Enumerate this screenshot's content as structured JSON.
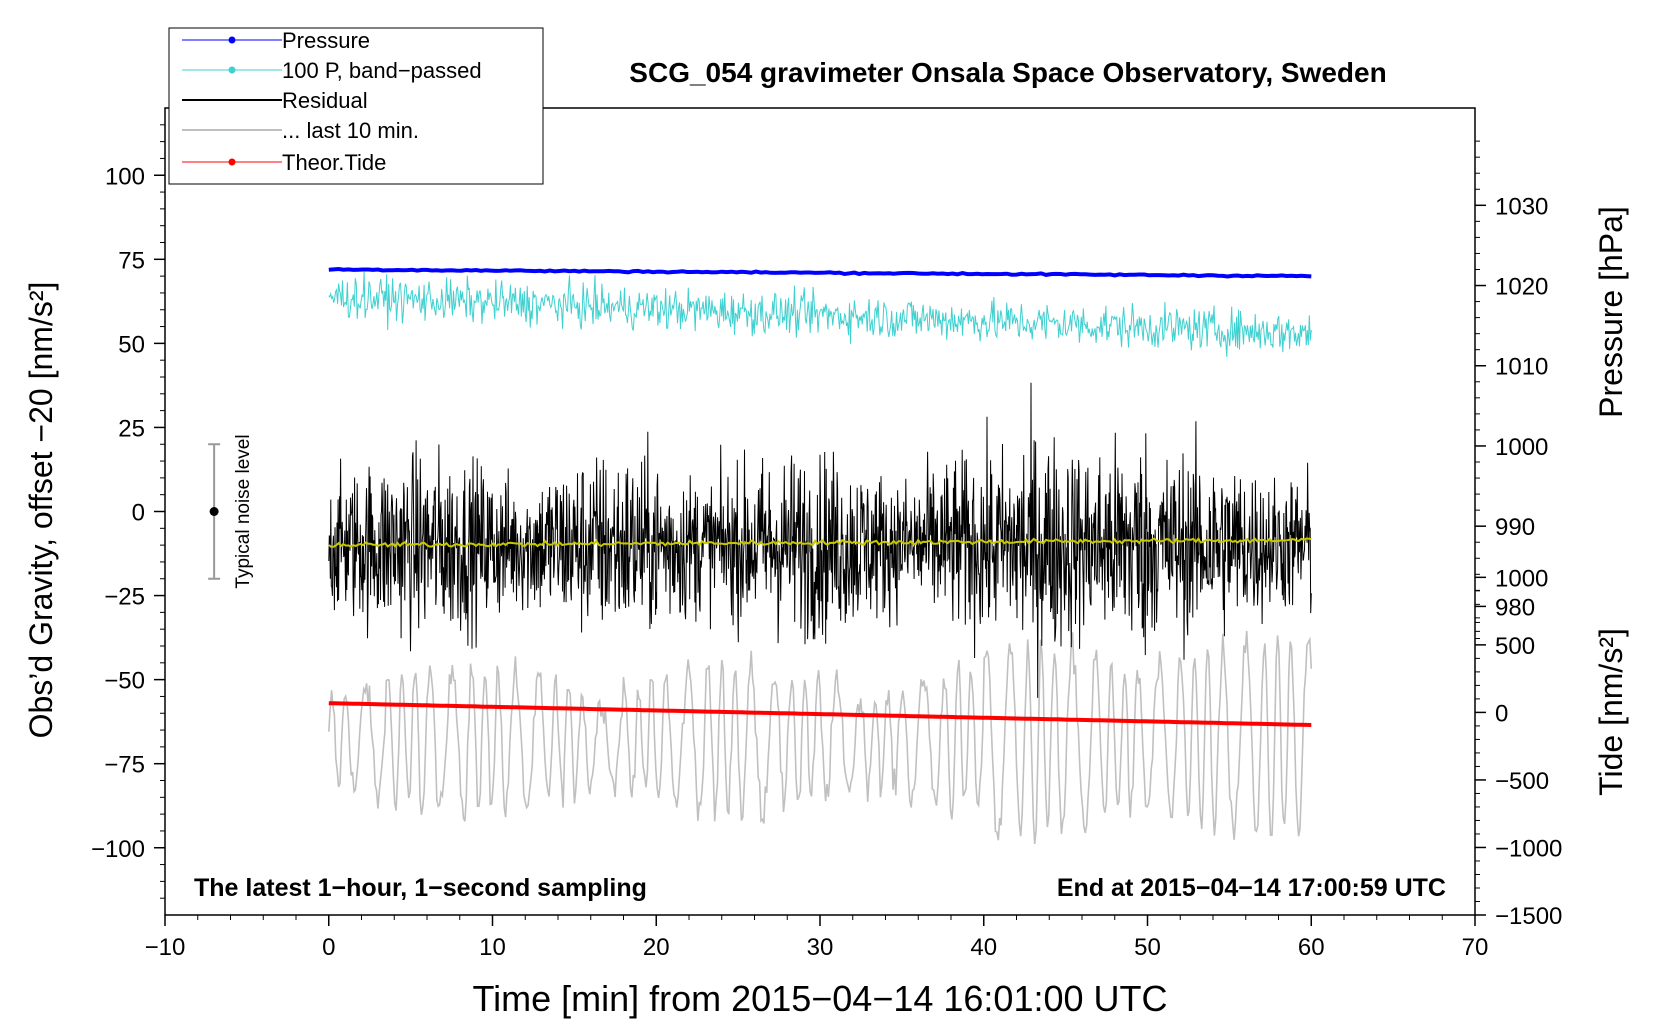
{
  "chart_data": {
    "type": "line",
    "title": "SCG_054 gravimeter Onsala Space Observatory, Sweden",
    "xlabel": "Time [min] from 2015−04−14 16:01:00 UTC",
    "ylabel_left": "Obs’d Gravity, offset −20 [nm/s²]",
    "ylabel_pressure": "Pressure [hPa]",
    "ylabel_tide": "Tide [nm/s²]",
    "xlim": [
      -10,
      70
    ],
    "ylim_left": [
      -120,
      120
    ],
    "ylim_pressure": [
      941.53,
      1042.13
    ],
    "ylim_tide": [
      -1500,
      4475
    ],
    "x_ticks": [
      "−10",
      "0",
      "10",
      "20",
      "30",
      "40",
      "50",
      "60",
      "70"
    ],
    "x_tick_values": [
      -10,
      0,
      10,
      20,
      30,
      40,
      50,
      60,
      70
    ],
    "y_left_ticks": [
      "100",
      "75",
      "50",
      "25",
      "0",
      "−25",
      "−50",
      "−75",
      "−100"
    ],
    "y_left_tick_values": [
      100,
      75,
      50,
      25,
      0,
      -25,
      -50,
      -75,
      -100
    ],
    "y_pressure_ticks": [
      "1030",
      "1020",
      "1010",
      "1000",
      "990",
      "980"
    ],
    "y_pressure_tick_values": [
      1030,
      1020,
      1010,
      1000,
      990,
      980
    ],
    "y_tide_ticks": [
      "1000",
      "500",
      "0",
      "−500",
      "−1000",
      "−1500"
    ],
    "y_tide_tick_values": [
      1000,
      500,
      0,
      -500,
      -1000,
      -1500
    ],
    "series": [
      {
        "name": "Pressure",
        "color": "#0000ff",
        "axis": "left",
        "start": 72,
        "end": 70
      },
      {
        "name": "100 P, band−passed",
        "color": "#40d0d0",
        "axis": "left",
        "mean_start": 64,
        "mean_end": 53,
        "amplitude": 4.5
      },
      {
        "name": "Residual",
        "color": "#000000",
        "axis": "left",
        "mean": -10,
        "amplitude": 15
      },
      {
        "name": "... last 10 min.",
        "color": "#c0c0c0",
        "axis": "left",
        "mean": -68,
        "amplitude": 22
      },
      {
        "name": "Theor.Tide",
        "color": "#ff0000",
        "axis": "left",
        "start": -57,
        "end": -63.5
      },
      {
        "name": "Residual mean",
        "color": "#c8c800",
        "axis": "left",
        "start": -10,
        "end": -8.5
      }
    ],
    "x_range": [
      0,
      60
    ],
    "noise_bar": {
      "label": "Typical noise level",
      "x": -7,
      "center": 0,
      "half_range": 20
    },
    "annotations": {
      "bottom_left": "The latest 1−hour, 1−second sampling",
      "bottom_right": "End at 2015−04−14 17:00:59 UTC"
    },
    "legend": [
      "Pressure",
      "100 P, band−passed",
      "Residual",
      "... last 10 min.",
      "Theor.Tide"
    ],
    "legend_position": "top-left"
  }
}
